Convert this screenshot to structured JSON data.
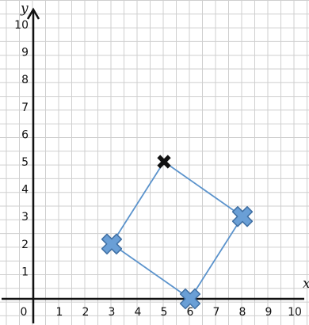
{
  "chart_data": {
    "type": "scatter",
    "xlabel": "x",
    "ylabel": "y",
    "xlim": [
      0,
      10
    ],
    "ylim": [
      0,
      10
    ],
    "grid": true,
    "x_ticks": [
      "0",
      "1",
      "2",
      "3",
      "4",
      "5",
      "6",
      "7",
      "8",
      "9",
      "10"
    ],
    "y_ticks": [
      "1",
      "2",
      "3",
      "4",
      "5",
      "6",
      "7",
      "8",
      "9",
      "10"
    ],
    "series": [
      {
        "points": [
          {
            "x": 3,
            "y": 2
          },
          {
            "x": 8,
            "y": 3
          },
          {
            "x": 6,
            "y": 0
          }
        ],
        "marker": "blue-cross",
        "color": "#6a9fd6"
      },
      {
        "points": [
          {
            "x": 5,
            "y": 5
          }
        ],
        "marker": "black-cross",
        "color": "#111111"
      }
    ],
    "polygon": {
      "vertices": [
        {
          "x": 5,
          "y": 5
        },
        {
          "x": 8,
          "y": 3
        },
        {
          "x": 6,
          "y": 0
        },
        {
          "x": 3,
          "y": 2
        }
      ],
      "color": "#5b93cc"
    }
  }
}
